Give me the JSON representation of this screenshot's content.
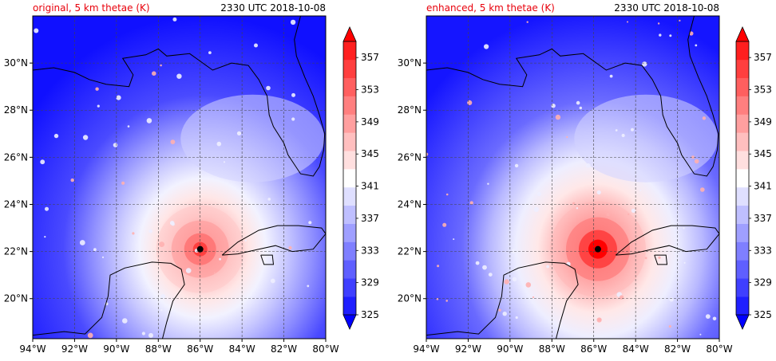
{
  "panels": [
    {
      "title": "original, 5 km thetae (K)",
      "time": "2330 UTC 2018-10-08",
      "storm_center": {
        "lon": -86.0,
        "lat": 22.1
      },
      "core_intensity": "weaker"
    },
    {
      "title": "enhanced, 5 km thetae (K)",
      "time": "2330 UTC 2018-10-08",
      "storm_center": {
        "lon": -85.8,
        "lat": 22.1
      },
      "core_intensity": "stronger"
    }
  ],
  "map": {
    "lon_range": [
      -94,
      -80
    ],
    "lat_range": [
      18.3,
      32
    ],
    "lon_ticks": [
      "94°W",
      "92°W",
      "90°W",
      "88°W",
      "86°W",
      "84°W",
      "82°W",
      "80°W"
    ],
    "lat_ticks": [
      "20°N",
      "22°N",
      "24°N",
      "26°N",
      "28°N",
      "30°N"
    ],
    "gridlines": "dashed"
  },
  "colorbar": {
    "units": "K",
    "range": [
      325,
      359
    ],
    "interval": 2,
    "labels": [
      "325",
      "329",
      "333",
      "337",
      "341",
      "345",
      "349",
      "353",
      "357"
    ],
    "extend": "both",
    "colors": [
      "#0000ff",
      "#1f1fff",
      "#3f3fff",
      "#5f5fff",
      "#7f7fff",
      "#9f9fff",
      "#bfbfff",
      "#dfdfff",
      "#ffffff",
      "#ffdfdf",
      "#ffbfbf",
      "#ff9f9f",
      "#ff7f7f",
      "#ff5f5f",
      "#ff3f3f",
      "#ff1f1f",
      "#ff0000"
    ]
  },
  "colors": {
    "title_accent": "#e8000b",
    "text": "#000000"
  }
}
